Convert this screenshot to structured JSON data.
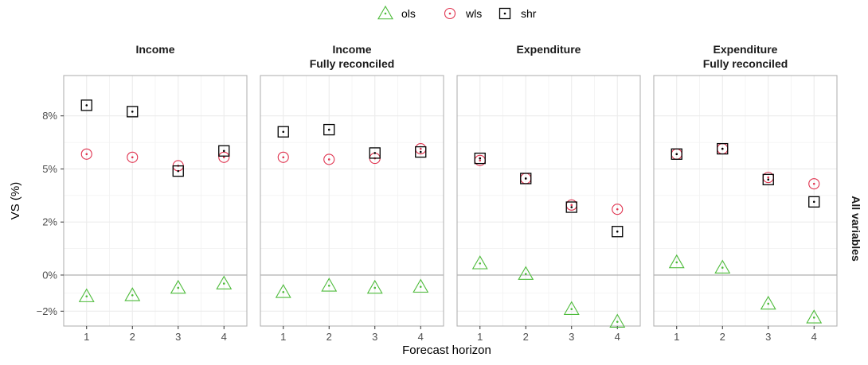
{
  "chart_data": {
    "type": "scatter",
    "legend": {
      "position": "top",
      "entries": [
        {
          "name": "ols",
          "marker": "triangle",
          "color": "#4dbb3a"
        },
        {
          "name": "wls",
          "marker": "circle",
          "color": "#e0334f"
        },
        {
          "name": "shr",
          "marker": "square",
          "color": "#000000"
        }
      ]
    },
    "xlabel": "Forecast horizon",
    "ylabel": "VS (%)",
    "strip_label": "All variables",
    "x_ticks": [
      "1",
      "2",
      "3",
      "4"
    ],
    "xlim": [
      0.5,
      4.5
    ],
    "ylim": [
      -2.4,
      9.4
    ],
    "y_ticks": [
      {
        "value": -1.7,
        "label": "−2%"
      },
      {
        "value": 0,
        "label": "0%"
      },
      {
        "value": 2.5,
        "label": "2%"
      },
      {
        "value": 5,
        "label": "5%"
      },
      {
        "value": 7.5,
        "label": "8%"
      }
    ],
    "zero_line": 0,
    "grid": true,
    "panels": [
      {
        "title_lines": [
          "Income"
        ],
        "series": [
          {
            "name": "ols",
            "x": [
              1,
              2,
              3,
              4
            ],
            "y": [
              -1.0,
              -0.95,
              -0.6,
              -0.4
            ]
          },
          {
            "name": "wls",
            "x": [
              1,
              2,
              3,
              4
            ],
            "y": [
              5.7,
              5.55,
              5.15,
              5.55
            ]
          },
          {
            "name": "shr",
            "x": [
              1,
              2,
              3,
              4
            ],
            "y": [
              8.0,
              7.7,
              4.9,
              5.85
            ]
          }
        ]
      },
      {
        "title_lines": [
          "Income",
          "Fully reconciled"
        ],
        "series": [
          {
            "name": "ols",
            "x": [
              1,
              2,
              3,
              4
            ],
            "y": [
              -0.8,
              -0.5,
              -0.6,
              -0.55
            ]
          },
          {
            "name": "wls",
            "x": [
              1,
              2,
              3,
              4
            ],
            "y": [
              5.55,
              5.45,
              5.5,
              5.95
            ]
          },
          {
            "name": "shr",
            "x": [
              1,
              2,
              3,
              4
            ],
            "y": [
              6.75,
              6.85,
              5.75,
              5.8
            ]
          }
        ]
      },
      {
        "title_lines": [
          "Expenditure"
        ],
        "series": [
          {
            "name": "ols",
            "x": [
              1,
              2,
              3,
              4
            ],
            "y": [
              0.55,
              0.05,
              -1.6,
              -2.2
            ]
          },
          {
            "name": "wls",
            "x": [
              1,
              2,
              3,
              4
            ],
            "y": [
              5.4,
              4.55,
              3.3,
              3.1
            ]
          },
          {
            "name": "shr",
            "x": [
              1,
              2,
              3,
              4
            ],
            "y": [
              5.5,
              4.55,
              3.2,
              2.05
            ]
          }
        ]
      },
      {
        "title_lines": [
          "Expenditure",
          "Fully reconciled"
        ],
        "series": [
          {
            "name": "ols",
            "x": [
              1,
              2,
              3,
              4
            ],
            "y": [
              0.6,
              0.35,
              -1.35,
              -2.0
            ]
          },
          {
            "name": "wls",
            "x": [
              1,
              2,
              3,
              4
            ],
            "y": [
              5.7,
              5.95,
              4.6,
              4.3
            ]
          },
          {
            "name": "shr",
            "x": [
              1,
              2,
              3,
              4
            ],
            "y": [
              5.7,
              5.95,
              4.5,
              3.45
            ]
          }
        ]
      }
    ]
  }
}
